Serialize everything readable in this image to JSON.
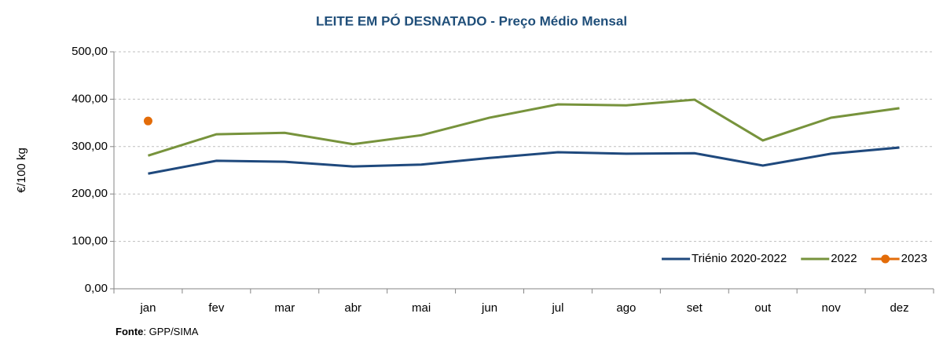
{
  "chart_data": {
    "type": "line",
    "title": "LEITE EM PÓ DESNATADO - Preço Médio Mensal",
    "y_label": "€/100 kg",
    "source_label": "Fonte",
    "source_text": ": GPP/SIMA",
    "categories": [
      "jan",
      "fev",
      "mar",
      "abr",
      "mai",
      "jun",
      "jul",
      "ago",
      "set",
      "out",
      "nov",
      "dez"
    ],
    "series": [
      {
        "name": "Triénio  2020-2022",
        "color": "#1f497d",
        "marker": false,
        "values": [
          243,
          270,
          268,
          258,
          262,
          276,
          288,
          285,
          286,
          260,
          285,
          298
        ]
      },
      {
        "name": "2022",
        "color": "#77933c",
        "marker": false,
        "values": [
          281,
          326,
          329,
          305,
          324,
          361,
          389,
          387,
          399,
          313,
          361,
          381
        ]
      },
      {
        "name": "2023",
        "color": "#e36c09",
        "marker": true,
        "values": [
          354,
          null,
          null,
          null,
          null,
          null,
          null,
          null,
          null,
          null,
          null,
          null
        ]
      }
    ],
    "ylim": [
      0,
      500
    ],
    "yticks": [
      {
        "value": 0,
        "label": "0,00"
      },
      {
        "value": 100,
        "label": "100,00"
      },
      {
        "value": 200,
        "label": "200,00"
      },
      {
        "value": 300,
        "label": "300,00"
      },
      {
        "value": 400,
        "label": "400,00"
      },
      {
        "value": 500,
        "label": "500,00"
      }
    ],
    "grid": true,
    "legend": "bottom-right"
  }
}
